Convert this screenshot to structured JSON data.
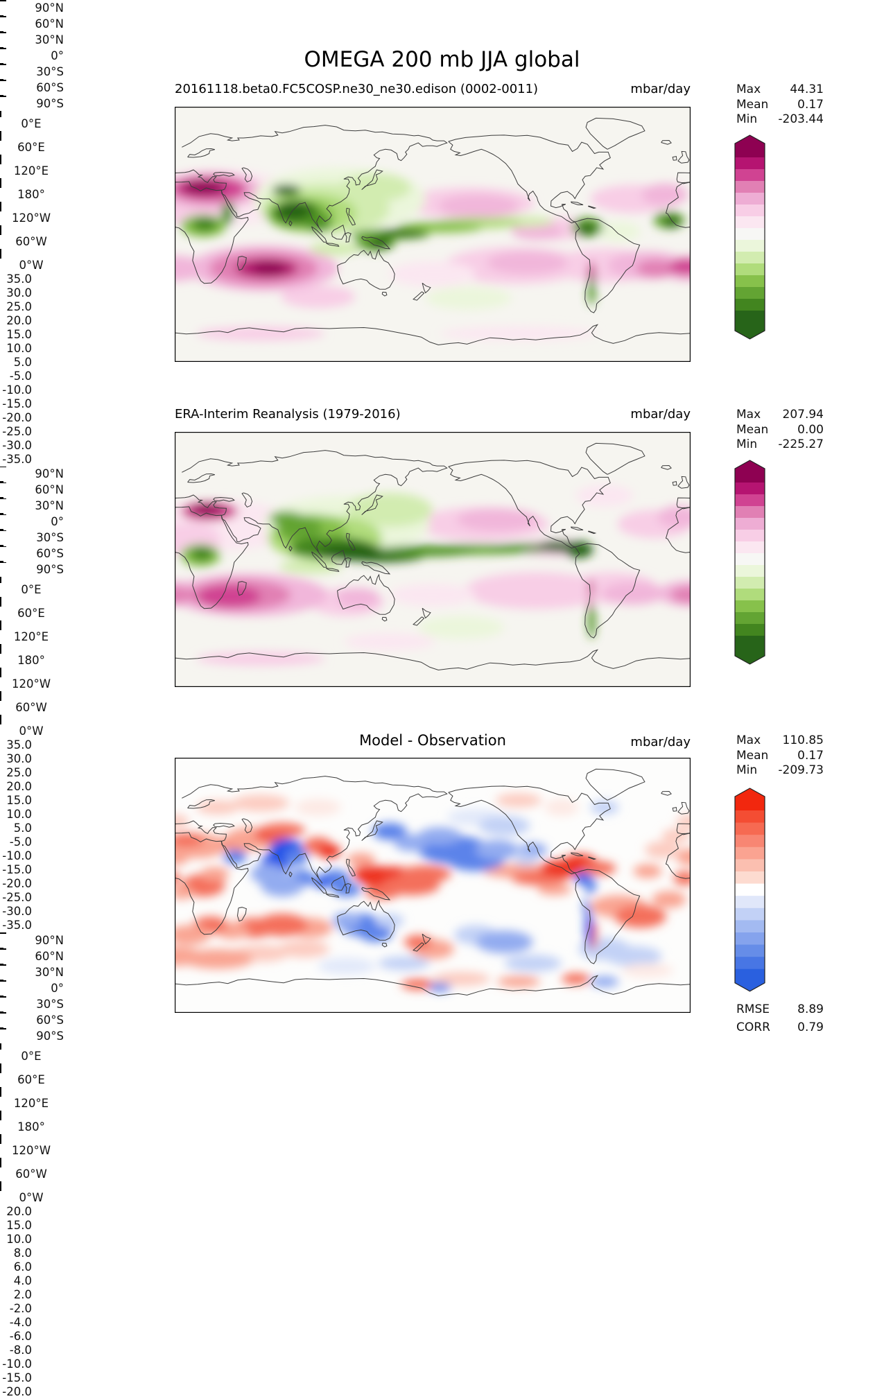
{
  "figure_title": "OMEGA 200 mb JJA global",
  "panels": [
    {
      "id": "model",
      "title": "20161118.beta0.FC5COSP.ne30_ne30.edison (0002-0011)",
      "units": "mbar/day",
      "stats": {
        "max_label": "Max",
        "max_value": "44.31",
        "mean_label": "Mean",
        "mean_value": "0.17",
        "min_label": "Min",
        "min_value": "-203.44"
      },
      "colorbar": {
        "tick_labels": [
          "35.0",
          "30.0",
          "25.0",
          "20.0",
          "15.0",
          "10.0",
          "5.0",
          "-5.0",
          "-10.0",
          "-15.0",
          "-20.0",
          "-25.0",
          "-30.0",
          "-35.0"
        ],
        "colors": [
          "#8e0152",
          "#b51471",
          "#d04392",
          "#e180b4",
          "#eeadd4",
          "#f8cee6",
          "#fbe7f1",
          "#f7f7f5",
          "#ebf6db",
          "#d2ecb0",
          "#b0dc7c",
          "#87c14b",
          "#63a433",
          "#42851f",
          "#276419"
        ]
      },
      "yticks": [
        "90°N",
        "60°N",
        "30°N",
        "0°",
        "30°S",
        "60°S",
        "90°S"
      ],
      "xticks": [
        "0°E",
        "60°E",
        "120°E",
        "180°",
        "120°W",
        "60°W",
        "0°W"
      ]
    },
    {
      "id": "reanalysis",
      "title": "ERA-Interim Reanalysis (1979-2016)",
      "units": "mbar/day",
      "stats": {
        "max_label": "Max",
        "max_value": "207.94",
        "mean_label": "Mean",
        "mean_value": "0.00",
        "min_label": "Min",
        "min_value": "-225.27"
      },
      "colorbar": {
        "tick_labels": [
          "35.0",
          "30.0",
          "25.0",
          "20.0",
          "15.0",
          "10.0",
          "5.0",
          "-5.0",
          "-10.0",
          "-15.0",
          "-20.0",
          "-25.0",
          "-30.0",
          "-35.0"
        ],
        "colors": [
          "#8e0152",
          "#b51471",
          "#d04392",
          "#e180b4",
          "#eeadd4",
          "#f8cee6",
          "#fbe7f1",
          "#f7f7f5",
          "#ebf6db",
          "#d2ecb0",
          "#b0dc7c",
          "#87c14b",
          "#63a433",
          "#42851f",
          "#276419"
        ]
      },
      "yticks": [
        "90°N",
        "60°N",
        "30°N",
        "0°",
        "30°S",
        "60°S",
        "90°S"
      ],
      "xticks": [
        "0°E",
        "60°E",
        "120°E",
        "180°",
        "120°W",
        "60°W",
        "0°W"
      ]
    },
    {
      "id": "difference",
      "title": "Model - Observation",
      "units": "mbar/day",
      "stats": {
        "max_label": "Max",
        "max_value": "110.85",
        "mean_label": "Mean",
        "mean_value": "0.17",
        "min_label": "Min",
        "min_value": "-209.73"
      },
      "colorbar": {
        "tick_labels": [
          "20.0",
          "15.0",
          "10.0",
          "8.0",
          "6.0",
          "4.0",
          "2.0",
          "-2.0",
          "-4.0",
          "-6.0",
          "-8.0",
          "-10.0",
          "-15.0",
          "-20.0"
        ],
        "colors": [
          "#f2270e",
          "#f44d33",
          "#f66a52",
          "#f88673",
          "#faa391",
          "#fbbfb0",
          "#fddbd0",
          "#ffffff",
          "#e0e7fa",
          "#c2d1f6",
          "#a3baf1",
          "#85a3ed",
          "#668de8",
          "#4876e4",
          "#2a60df"
        ]
      },
      "yticks": [
        "90°N",
        "60°N",
        "30°N",
        "0°",
        "30°S",
        "60°S",
        "90°S"
      ],
      "xticks": [
        "0°E",
        "60°E",
        "120°E",
        "180°",
        "120°W",
        "60°W",
        "0°W"
      ],
      "rmse_label": "RMSE",
      "rmse_value": "8.89",
      "corr_label": "CORR",
      "corr_value": "0.79"
    }
  ],
  "chart_data": {
    "type": "heatmap",
    "subtype": "filled-contour world maps (equirectangular, 0°E to 0°W eastward, 90°N to 90°S)",
    "title": "OMEGA 200 mb JJA global",
    "units": "mbar/day",
    "lon_ticks": [
      "0°E",
      "60°E",
      "120°E",
      "180°",
      "120°W",
      "60°W",
      "0°W"
    ],
    "lat_ticks": [
      "90°N",
      "60°N",
      "30°N",
      "0°",
      "30°S",
      "60°S",
      "90°S"
    ],
    "panels": [
      {
        "name": "model",
        "title": "20161118.beta0.FC5COSP.ne30_ne30.edison (0002-0011)",
        "colormap": "magenta(positive)-white-green(negative), PiYG-like",
        "contour_levels": [
          -35,
          -30,
          -25,
          -20,
          -15,
          -10,
          -5,
          5,
          10,
          15,
          20,
          25,
          30,
          35
        ],
        "max": 44.31,
        "mean": 0.17,
        "min": -203.44,
        "notable_features": "strong positive (magenta) centers over Mediterranean/Middle East near 30N and south Indian Ocean near 25S; strong negative (green) centers over India/Southeast Asia, equatorial Africa, Maritime Continent, west Pacific ITCZ and northern South America; narrow magenta/green streaks along the Andes"
      },
      {
        "name": "reanalysis",
        "title": "ERA-Interim Reanalysis (1979-2016)",
        "colormap": "magenta(positive)-white-green(negative), PiYG-like",
        "contour_levels": [
          -35,
          -30,
          -25,
          -20,
          -15,
          -10,
          -5,
          5,
          10,
          15,
          20,
          25,
          30,
          35
        ],
        "max": 207.94,
        "mean": 0.0,
        "min": -225.27,
        "notable_features": "compact intense magenta center over eastern Mediterranean; continuous dark-green ITCZ band from Indian Ocean across the Pacific to Central America; broad magenta band over southern subtropical Indian Ocean; narrow Andes streaks"
      },
      {
        "name": "difference",
        "title": "Model - Observation",
        "colormap": "red(positive)-white-blue(negative)",
        "contour_levels": [
          -20,
          -15,
          -10,
          -8,
          -6,
          -4,
          -2,
          2,
          4,
          6,
          8,
          10,
          15,
          20
        ],
        "max": 110.85,
        "mean": 0.17,
        "min": -209.73,
        "rmse": 8.89,
        "corr": 0.79,
        "notable_features": "patchy red/blue differences: blue over India/Arabian Sea/central North Pacific/Australia/Andes, red over Sahara-Middle East, west tropical Pacific, Caribbean-Atlantic ITCZ and southern mid-latitude oceans"
      }
    ]
  }
}
